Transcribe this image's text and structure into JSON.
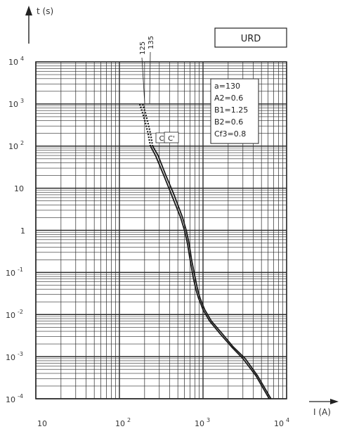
{
  "chart_data": {
    "type": "line",
    "title": "URD",
    "xlabel": "I (A)",
    "ylabel": "t (s)",
    "xscale": "log",
    "yscale": "log",
    "xlim": [
      10,
      10000
    ],
    "ylim": [
      0.0001,
      10000
    ],
    "grid": true,
    "x_ticks": [
      {
        "base": "10",
        "exp": ""
      },
      {
        "base": "10",
        "exp": "2"
      },
      {
        "base": "10",
        "exp": "3"
      },
      {
        "base": "10",
        "exp": "4"
      }
    ],
    "y_ticks": [
      {
        "base": "10",
        "exp": "4"
      },
      {
        "base": "10",
        "exp": "3"
      },
      {
        "base": "10",
        "exp": "2"
      },
      {
        "base": "10",
        "exp": ""
      },
      {
        "base": "1",
        "exp": ""
      },
      {
        "base": "10",
        "exp": "-1"
      },
      {
        "base": "10",
        "exp": "-2"
      },
      {
        "base": "10",
        "exp": "-3"
      },
      {
        "base": "10",
        "exp": "-4"
      }
    ],
    "series": [
      {
        "x": [
          175,
          190,
          205,
          220,
          235,
          270,
          340,
          420,
          540,
          600,
          650,
          700,
          760,
          820,
          880,
          940,
          1000,
          1200,
          1600,
          2200,
          3000,
          4300,
          6200
        ],
        "y": [
          1000,
          600,
          350,
          200,
          100,
          60,
          20,
          7,
          2,
          1,
          0.5,
          0.2,
          0.08,
          0.04,
          0.025,
          0.018,
          0.013,
          0.007,
          0.0035,
          0.0017,
          0.0009,
          0.00035,
          0.0001
        ],
        "dashed_until_y": 100
      },
      {
        "x": [
          190,
          205,
          220,
          235,
          250,
          290,
          360,
          450,
          570,
          630,
          680,
          730,
          800,
          860,
          920,
          980,
          1050,
          1260,
          1700,
          2300,
          3200,
          4500,
          6500
        ],
        "y": [
          1000,
          600,
          350,
          200,
          100,
          60,
          20,
          7,
          2,
          1,
          0.5,
          0.2,
          0.08,
          0.04,
          0.025,
          0.018,
          0.013,
          0.007,
          0.0035,
          0.0017,
          0.0009,
          0.00035,
          0.0001
        ],
        "dashed_until_y": 100
      }
    ],
    "annotations": {
      "label_125": "125",
      "label_135": "135",
      "label_c": "C",
      "label_c_prime": "C'"
    },
    "params": [
      "a=130",
      "A2=0.6",
      "B1=1.25",
      "B2=0.6",
      "Cf3=0.8"
    ]
  },
  "colors": {
    "grid": "#2a2a2a",
    "curve": "#1a1a1a"
  }
}
